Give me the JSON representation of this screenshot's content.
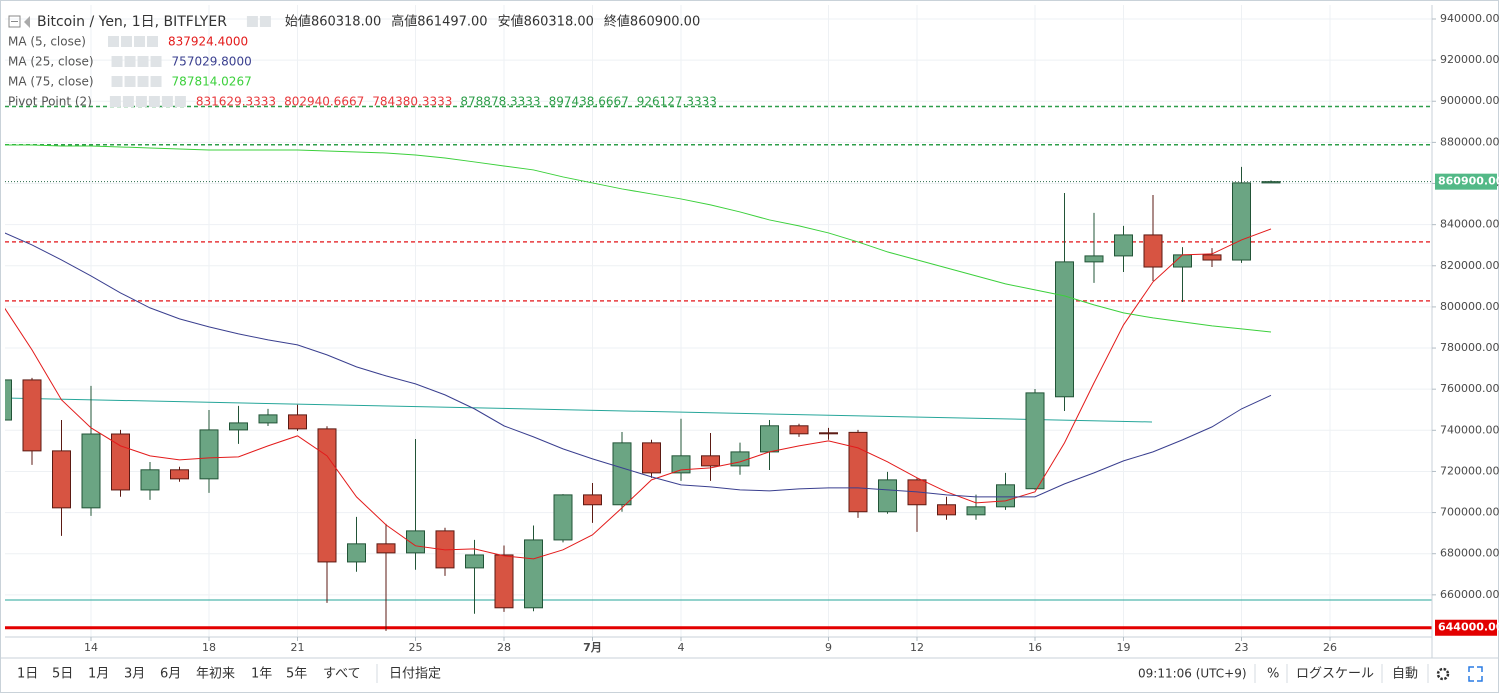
{
  "chart_data": {
    "type": "candlestick",
    "title": "Bitcoin / Yen, 1日, BITFLYER",
    "ohlc_header": [
      {
        "name": "始値",
        "value": 860318,
        "label": "860318.00"
      },
      {
        "name": "高値",
        "value": 861497,
        "label": "861497.00"
      },
      {
        "name": "安値",
        "value": 860318,
        "label": "860318.00"
      },
      {
        "name": "終値",
        "value": 860900,
        "label": "860900.00"
      }
    ],
    "categories": [
      null,
      null,
      null,
      "14",
      null,
      null,
      null,
      "18",
      null,
      null,
      "21",
      null,
      null,
      null,
      "25",
      null,
      null,
      "28",
      null,
      null,
      "7月",
      null,
      null,
      "4",
      null,
      null,
      null,
      null,
      "9",
      null,
      null,
      "12",
      null,
      null,
      null,
      "16",
      null,
      null,
      "19",
      null,
      null,
      null,
      "23",
      null,
      null,
      "26"
    ],
    "open": [
      745000,
      764500,
      730000,
      702300,
      738200,
      711000,
      720800,
      716400,
      740200,
      743600,
      747500,
      740700,
      676000,
      684800,
      680400,
      691100,
      673100,
      679400,
      653700,
      686700,
      708600,
      703800,
      733900,
      719300,
      727600,
      722700,
      729500,
      742200,
      738800,
      739000,
      700400,
      715900,
      703800,
      698900,
      702800,
      711600,
      756300,
      821900,
      824800,
      835000,
      819400,
      825300,
      822800,
      860318,
      null,
      null
    ],
    "high": [
      766000,
      765500,
      745000,
      761600,
      740200,
      724600,
      722300,
      749900,
      751900,
      750400,
      752400,
      742000,
      697900,
      694500,
      735800,
      692600,
      686700,
      684000,
      693700,
      709000,
      714400,
      739200,
      735400,
      745600,
      738700,
      734000,
      745000,
      743200,
      741200,
      740200,
      719800,
      716900,
      707700,
      708700,
      719300,
      760100,
      855400,
      845700,
      839400,
      854400,
      829100,
      828600,
      868100,
      861497,
      null,
      null
    ],
    "low": [
      743000,
      723200,
      688700,
      698400,
      707700,
      706200,
      715000,
      709600,
      733400,
      742100,
      739700,
      656100,
      671200,
      642500,
      672200,
      669200,
      650800,
      651700,
      652000,
      685500,
      695000,
      700400,
      716900,
      715400,
      715400,
      718400,
      720700,
      736800,
      735400,
      697400,
      699400,
      690600,
      696500,
      696500,
      701300,
      711100,
      749400,
      811700,
      817000,
      812600,
      802400,
      819400,
      821400,
      860318,
      null,
      null
    ],
    "close": [
      764500,
      730000,
      702300,
      738200,
      711000,
      720800,
      716400,
      740200,
      743600,
      747500,
      740700,
      676000,
      684800,
      680400,
      691100,
      673100,
      679400,
      653700,
      686700,
      708600,
      703800,
      733900,
      719300,
      727600,
      722700,
      729500,
      742200,
      738300,
      738300,
      700400,
      715900,
      703800,
      698900,
      702800,
      713500,
      758200,
      821900,
      824800,
      835000,
      819400,
      825300,
      822800,
      860300,
      860900,
      null,
      null
    ],
    "up_color": "#6ba583",
    "down_color": "#d75442",
    "series": [
      {
        "name": "MA (5, close)",
        "color": "#e31b1b",
        "current": {
          "value": 837924.4,
          "label": "837924.4000"
        },
        "values": [
          800980,
          779100,
          754800,
          741190,
          732440,
          727570,
          725630,
          726600,
          727090,
          732440,
          737300,
          727570,
          707640,
          694030,
          683830,
          681880,
          682370,
          678960,
          677510,
          681880,
          689170,
          702300,
          715910,
          720770,
          721740,
          724660,
          729520,
          732440,
          734870,
          731460,
          724660,
          716880,
          710080,
          704730,
          705700,
          710080,
          733890,
          763060,
          791250,
          812160,
          825280,
          825770,
          832570,
          837924.4,
          null,
          null
        ]
      },
      {
        "name": "MA (25, close)",
        "color": "#3a3f8f",
        "current": {
          "value": 757029.8,
          "label": "757029.8000"
        },
        "values": [
          836460,
          830140,
          822850,
          815070,
          806810,
          799520,
          794170,
          790280,
          786880,
          783960,
          781530,
          776670,
          770840,
          766460,
          762570,
          757230,
          750420,
          742160,
          736810,
          730980,
          726120,
          721740,
          717370,
          713480,
          712510,
          711050,
          710560,
          711530,
          712020,
          712020,
          711050,
          710080,
          708620,
          707640,
          707640,
          707640,
          713960,
          719310,
          725140,
          729520,
          735350,
          741670,
          750420,
          757029.8,
          null,
          null
        ]
      },
      {
        "name": "MA (75, close)",
        "color": "#3cd03c",
        "current": {
          "value": 787814.0267,
          "label": "787814.0267"
        },
        "values": [
          878750,
          878750,
          878270,
          878270,
          877780,
          877290,
          876810,
          876320,
          876320,
          876320,
          876320,
          875840,
          875350,
          874860,
          873890,
          872430,
          870490,
          868540,
          866600,
          863200,
          860280,
          857360,
          854930,
          852500,
          849590,
          846180,
          842290,
          839380,
          835970,
          831600,
          826740,
          822850,
          818960,
          815070,
          811180,
          808270,
          805350,
          800980,
          797090,
          794660,
          792710,
          790770,
          789310,
          787814.0267,
          null,
          null
        ]
      }
    ],
    "pivot": {
      "name": "Pivot Point (2)",
      "levels": [
        831629.3333,
        802940.6667,
        784380.3333,
        878878.3333,
        897438.6667,
        926127.3333
      ],
      "colors": [
        "#e8393c",
        "#e8393c",
        "#e8393c",
        "#2e9e4a",
        "#2e9e4a",
        "#2e9e4a"
      ],
      "lines": [
        true,
        true,
        false,
        true,
        true,
        false
      ]
    },
    "last_price": {
      "value": 860900,
      "label": "860900.00",
      "color": "#53b987"
    },
    "price_line": {
      "value": 644000,
      "label": "644000.00",
      "color": "#e30000"
    },
    "ylim": [
      639500,
      946800
    ],
    "yticks": [
      {
        "value": 660000,
        "label": "660000.00"
      },
      {
        "value": 680000,
        "label": "680000.00"
      },
      {
        "value": 700000,
        "label": "700000.00"
      },
      {
        "value": 720000,
        "label": "720000.00"
      },
      {
        "value": 740000,
        "label": "740000.00"
      },
      {
        "value": 760000,
        "label": "760000.00"
      },
      {
        "value": 780000,
        "label": "780000.00"
      },
      {
        "value": 800000,
        "label": "800000.00"
      },
      {
        "value": 820000,
        "label": "820000.00"
      },
      {
        "value": 840000,
        "label": "840000.00"
      },
      {
        "value": 860000,
        "label": "860000.00"
      },
      {
        "value": 880000,
        "label": "880000.00"
      },
      {
        "value": 900000,
        "label": "900000.00"
      },
      {
        "value": 920000,
        "label": "920000.00"
      },
      {
        "value": 940000,
        "label": "940000.00"
      }
    ],
    "grid": true,
    "toolbar": {
      "ranges": [
        "1日",
        "5日",
        "1月",
        "3月",
        "6月",
        "年初来",
        "1年",
        "5年",
        "すべて",
        "日付指定"
      ],
      "time": "09:11:06 (UTC+9)",
      "percent": "%",
      "log_scale": "ログスケール",
      "auto": "自動"
    }
  }
}
